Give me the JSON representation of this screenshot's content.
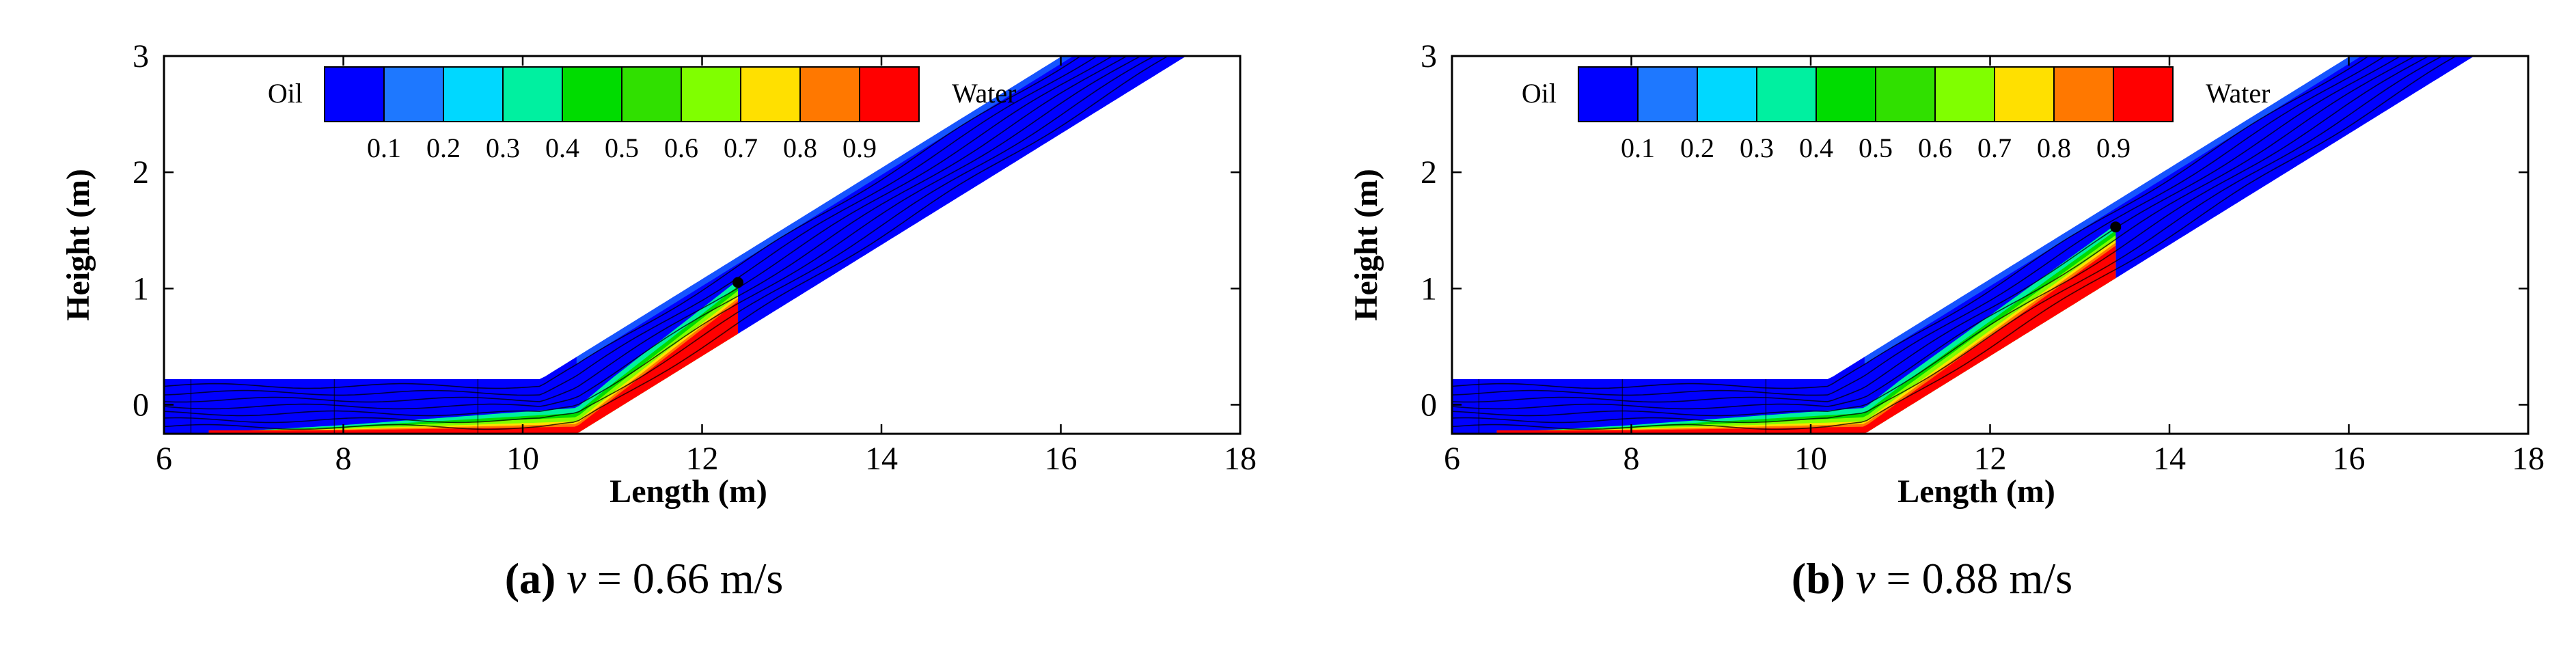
{
  "chart_data": [
    {
      "type": "contour",
      "panel_letter": "(a)",
      "caption_var": "v",
      "caption_value": "= 0.66 m/s",
      "xlabel": "Length (m)",
      "ylabel": "Height (m)",
      "xlim": [
        6,
        18
      ],
      "ylim": [
        -0.25,
        3
      ],
      "xticks": [
        6,
        8,
        10,
        12,
        14,
        16,
        18
      ],
      "yticks": [
        0,
        1,
        2,
        3
      ],
      "legend": {
        "left_label": "Oil",
        "right_label": "Water",
        "levels": [
          "0.1",
          "0.2",
          "0.3",
          "0.4",
          "0.5",
          "0.6",
          "0.7",
          "0.8",
          "0.9"
        ],
        "colors": [
          "#0000ff",
          "#1e78ff",
          "#00d8ff",
          "#00f0a0",
          "#00dc00",
          "#30e000",
          "#80ff00",
          "#ffe000",
          "#ff7800",
          "#ff0000"
        ]
      },
      "water_front_x": 12.4
    },
    {
      "type": "contour",
      "panel_letter": "(b)",
      "caption_var": "v",
      "caption_value": "= 0.88 m/s",
      "xlabel": "Length (m)",
      "ylabel": "Height (m)",
      "xlim": [
        6,
        18
      ],
      "ylim": [
        -0.25,
        3
      ],
      "xticks": [
        6,
        8,
        10,
        12,
        14,
        16,
        18
      ],
      "yticks": [
        0,
        1,
        2,
        3
      ],
      "legend": {
        "left_label": "Oil",
        "right_label": "Water",
        "levels": [
          "0.1",
          "0.2",
          "0.3",
          "0.4",
          "0.5",
          "0.6",
          "0.7",
          "0.8",
          "0.9"
        ],
        "colors": [
          "#0000ff",
          "#1e78ff",
          "#00d8ff",
          "#00f0a0",
          "#00dc00",
          "#30e000",
          "#80ff00",
          "#ffe000",
          "#ff7800",
          "#ff0000"
        ]
      },
      "water_front_x": 13.4
    }
  ]
}
